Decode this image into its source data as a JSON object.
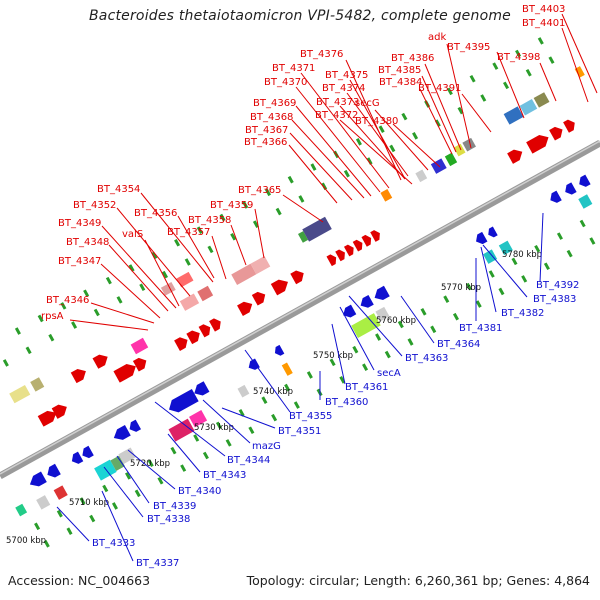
{
  "title": "Bacteroides thetaiotaomicron VPI-5482, complete genome",
  "accession": "Accession: NC_004663",
  "summary": "Topology: circular; Length: 6,260,361 bp; Genes: 4,864",
  "colors": {
    "forward": "#e00000",
    "reverse": "#1010d0"
  },
  "ticks": [
    "5700 kbp",
    "5710 kbp",
    "5720 kbp",
    "5730 kbp",
    "5740 kbp",
    "5750 kbp",
    "5760 kbp",
    "5770 kbp",
    "5780 kbp"
  ],
  "upper_labels": [
    "BT_4403",
    "BT_4401",
    "adk",
    "BT_4395",
    "BT_4398",
    "BT_4386",
    "BT_4385",
    "BT_4384",
    "BT_4391",
    "BT_4376",
    "BT_4371",
    "BT_4375",
    "BT_4370",
    "BT_4374",
    "BT_4369",
    "BT_4373",
    "secG",
    "BT_4368",
    "BT_4372",
    "BT_4367",
    "BT_4380",
    "BT_4366",
    "BT_4354",
    "BT_4365",
    "BT_4352",
    "BT_4356",
    "BT_4358",
    "BT_4359",
    "BT_4349",
    "valS",
    "BT_4357",
    "BT_4348",
    "BT_4347",
    "BT_4346",
    "rpsA"
  ],
  "lower_labels": [
    "BT_4392",
    "BT_4383",
    "BT_4382",
    "BT_4381",
    "BT_4364",
    "BT_4363",
    "secA",
    "BT_4361",
    "BT_4360",
    "BT_4355",
    "BT_4351",
    "mazG",
    "BT_4344",
    "BT_4343",
    "BT_4340",
    "BT_4339",
    "BT_4338",
    "BT_4333",
    "BT_4337"
  ]
}
